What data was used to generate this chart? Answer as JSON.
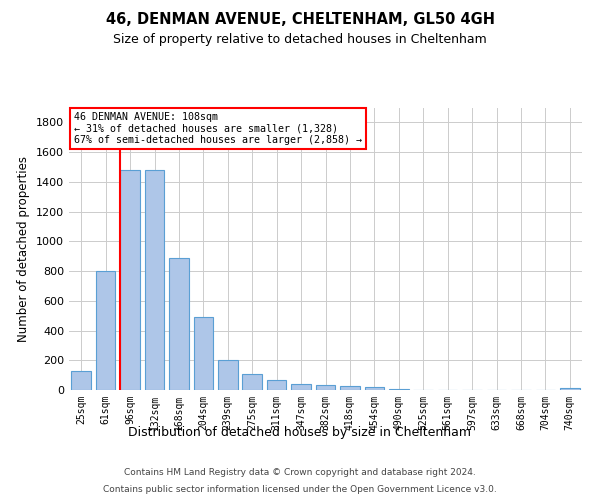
{
  "title1": "46, DENMAN AVENUE, CHELTENHAM, GL50 4GH",
  "title2": "Size of property relative to detached houses in Cheltenham",
  "xlabel": "Distribution of detached houses by size in Cheltenham",
  "ylabel": "Number of detached properties",
  "categories": [
    "25sqm",
    "61sqm",
    "96sqm",
    "132sqm",
    "168sqm",
    "204sqm",
    "239sqm",
    "275sqm",
    "311sqm",
    "347sqm",
    "382sqm",
    "418sqm",
    "454sqm",
    "490sqm",
    "525sqm",
    "561sqm",
    "597sqm",
    "633sqm",
    "668sqm",
    "704sqm",
    "740sqm"
  ],
  "values": [
    125,
    800,
    1480,
    1480,
    885,
    490,
    205,
    105,
    65,
    40,
    32,
    25,
    18,
    5,
    2,
    1,
    1,
    1,
    1,
    1,
    15
  ],
  "bar_color": "#aec6e8",
  "bar_edge_color": "#5a9fd4",
  "red_line_index": 2,
  "annotation_title": "46 DENMAN AVENUE: 108sqm",
  "annotation_line1": "← 31% of detached houses are smaller (1,328)",
  "annotation_line2": "67% of semi-detached houses are larger (2,858) →",
  "footnote1": "Contains HM Land Registry data © Crown copyright and database right 2024.",
  "footnote2": "Contains public sector information licensed under the Open Government Licence v3.0.",
  "ylim": [
    0,
    1900
  ],
  "yticks": [
    0,
    200,
    400,
    600,
    800,
    1000,
    1200,
    1400,
    1600,
    1800
  ],
  "bg_color": "#ffffff",
  "grid_color": "#cccccc"
}
